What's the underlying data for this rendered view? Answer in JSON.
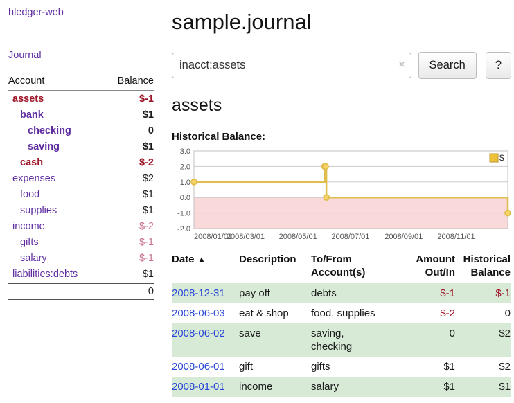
{
  "colors": {
    "link_purple": "#5f2da0",
    "date_blue": "#2946d8",
    "negative_red": "#9e1528",
    "negative_pink": "#c9758f",
    "row_green": "#d6ead6",
    "chart_line_gold": "#dfbe4f",
    "chart_marker_fill": "#f6d566",
    "chart_legend_fill": "#efc13b",
    "chart_negative_region": "#f9d9d9"
  },
  "sidebar": {
    "app_title": "hledger-web",
    "journal_link": "Journal",
    "accounts_header": {
      "account": "Account",
      "balance": "Balance"
    },
    "accounts": [
      {
        "name": "assets",
        "balance": "$-1",
        "indent": 0,
        "bold": true,
        "name_color": "red",
        "balance_color": "red"
      },
      {
        "name": "bank",
        "balance": "$1",
        "indent": 1,
        "bold": true,
        "name_color": "purple",
        "balance_color": "black"
      },
      {
        "name": "checking",
        "balance": "0",
        "indent": 2,
        "bold": true,
        "name_color": "purple",
        "balance_color": "black"
      },
      {
        "name": "saving",
        "balance": "$1",
        "indent": 2,
        "bold": true,
        "name_color": "purple",
        "balance_color": "black"
      },
      {
        "name": "cash",
        "balance": "$-2",
        "indent": 1,
        "bold": true,
        "name_color": "red",
        "balance_color": "red"
      },
      {
        "name": "expenses",
        "balance": "$2",
        "indent": 0,
        "bold": false,
        "name_color": "purple",
        "balance_color": "black"
      },
      {
        "name": "food",
        "balance": "$1",
        "indent": 1,
        "bold": false,
        "name_color": "purple",
        "balance_color": "black"
      },
      {
        "name": "supplies",
        "balance": "$1",
        "indent": 1,
        "bold": false,
        "name_color": "purple",
        "balance_color": "black"
      },
      {
        "name": "income",
        "balance": "$-2",
        "indent": 0,
        "bold": false,
        "name_color": "purple",
        "balance_color": "pink"
      },
      {
        "name": "gifts",
        "balance": "$-1",
        "indent": 1,
        "bold": false,
        "name_color": "purple",
        "balance_color": "pink"
      },
      {
        "name": "salary",
        "balance": "$-1",
        "indent": 1,
        "bold": false,
        "name_color": "purple",
        "balance_color": "pink"
      },
      {
        "name": "liabilities:debts",
        "balance": "$1",
        "indent": 0,
        "bold": false,
        "name_color": "purple",
        "balance_color": "black"
      }
    ],
    "total": "0"
  },
  "main": {
    "title": "sample.journal",
    "search": {
      "value": "inacct:assets",
      "clear_icon": "×",
      "search_button": "Search",
      "help_button": "?"
    },
    "account_heading": "assets",
    "chart_title": "Historical Balance:"
  },
  "chart_data": {
    "type": "line",
    "step": true,
    "title": "Historical Balance",
    "xlabel": "",
    "ylabel": "",
    "ylim": [
      -2,
      3
    ],
    "yticks": [
      "3.0",
      "2.0",
      "1.0",
      "0.0",
      "-1.0",
      "-2.0"
    ],
    "xticks": [
      "2008/01/01",
      "2008/03/01",
      "2008/05/01",
      "2008/07/01",
      "2008/09/01",
      "2008/11/01"
    ],
    "grid": true,
    "legend": {
      "label": "$",
      "position": "top-right"
    },
    "series": [
      {
        "name": "$",
        "points": [
          [
            "2008-01-01",
            1
          ],
          [
            "2008-06-01",
            2
          ],
          [
            "2008-06-02",
            2
          ],
          [
            "2008-06-03",
            0
          ],
          [
            "2008-12-31",
            -1
          ]
        ]
      }
    ]
  },
  "table": {
    "headers": [
      "Date",
      "Description",
      "To/From\nAccount(s)",
      "Amount\nOut/In",
      "Historical\nBalance"
    ],
    "sort_icon": "▲",
    "rows": [
      {
        "date": "2008-12-31",
        "description": "pay off",
        "accounts": "debts",
        "amount": "$-1",
        "amount_color": "red",
        "balance": "$-1",
        "balance_color": "red",
        "highlighted": true
      },
      {
        "date": "2008-06-03",
        "description": "eat & shop",
        "accounts": "food, supplies",
        "amount": "$-2",
        "amount_color": "red",
        "balance": "0",
        "balance_color": "black",
        "highlighted": false
      },
      {
        "date": "2008-06-02",
        "description": "save",
        "accounts": "saving,\nchecking",
        "amount": "0",
        "amount_color": "black",
        "balance": "$2",
        "balance_color": "black",
        "highlighted": true
      },
      {
        "date": "2008-06-01",
        "description": "gift",
        "accounts": "gifts",
        "amount": "$1",
        "amount_color": "black",
        "balance": "$2",
        "balance_color": "black",
        "highlighted": false
      },
      {
        "date": "2008-01-01",
        "description": "income",
        "accounts": "salary",
        "amount": "$1",
        "amount_color": "black",
        "balance": "$1",
        "balance_color": "black",
        "highlighted": true
      }
    ]
  }
}
